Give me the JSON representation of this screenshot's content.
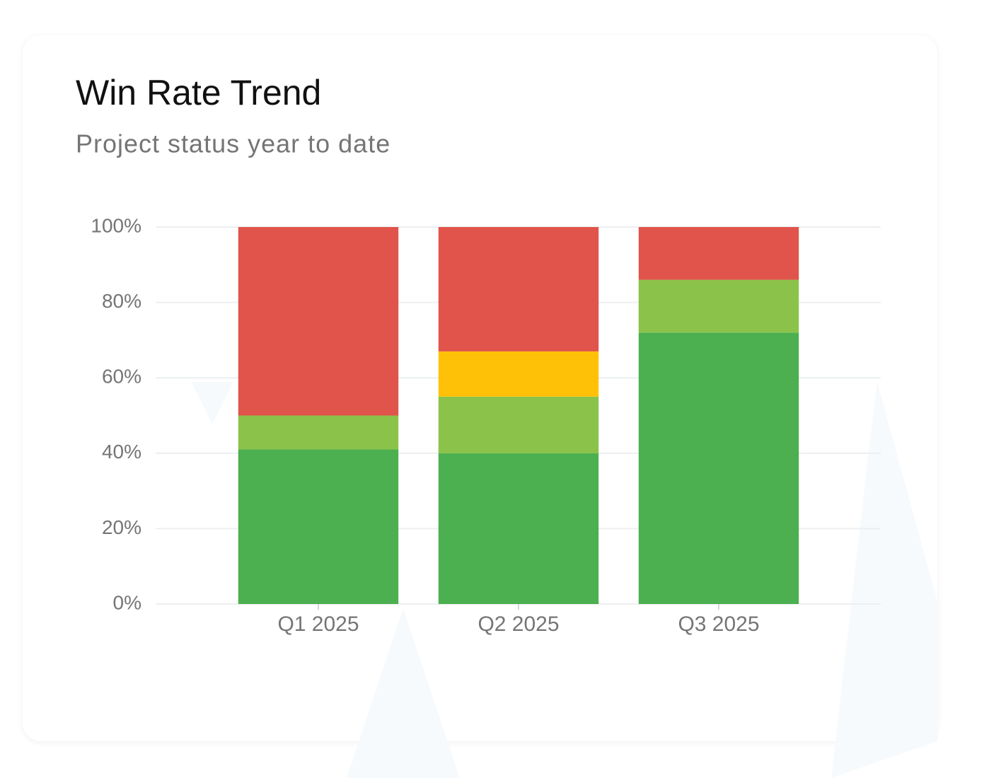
{
  "chart_data": {
    "type": "stacked-bar",
    "title": "Win Rate Trend",
    "subtitle": "Project status year to date",
    "categories": [
      "Q1 2025",
      "Q2 2025",
      "Q3 2025"
    ],
    "series": [
      {
        "color": "#4caf50",
        "values": [
          41,
          40,
          72
        ]
      },
      {
        "color": "#8bc34a",
        "values": [
          9,
          15,
          14
        ]
      },
      {
        "color": "#ffc107",
        "values": [
          0,
          12,
          0
        ]
      },
      {
        "color": "#e0544b",
        "values": [
          50,
          33,
          14
        ]
      }
    ],
    "ylim": [
      0,
      100
    ],
    "yticks": [
      {
        "value": 0,
        "label": "0%"
      },
      {
        "value": 20,
        "label": "20%"
      },
      {
        "value": 40,
        "label": "40%"
      },
      {
        "value": 60,
        "label": "60%"
      },
      {
        "value": 80,
        "label": "80%"
      },
      {
        "value": 100,
        "label": "100%"
      }
    ],
    "grid": true
  }
}
